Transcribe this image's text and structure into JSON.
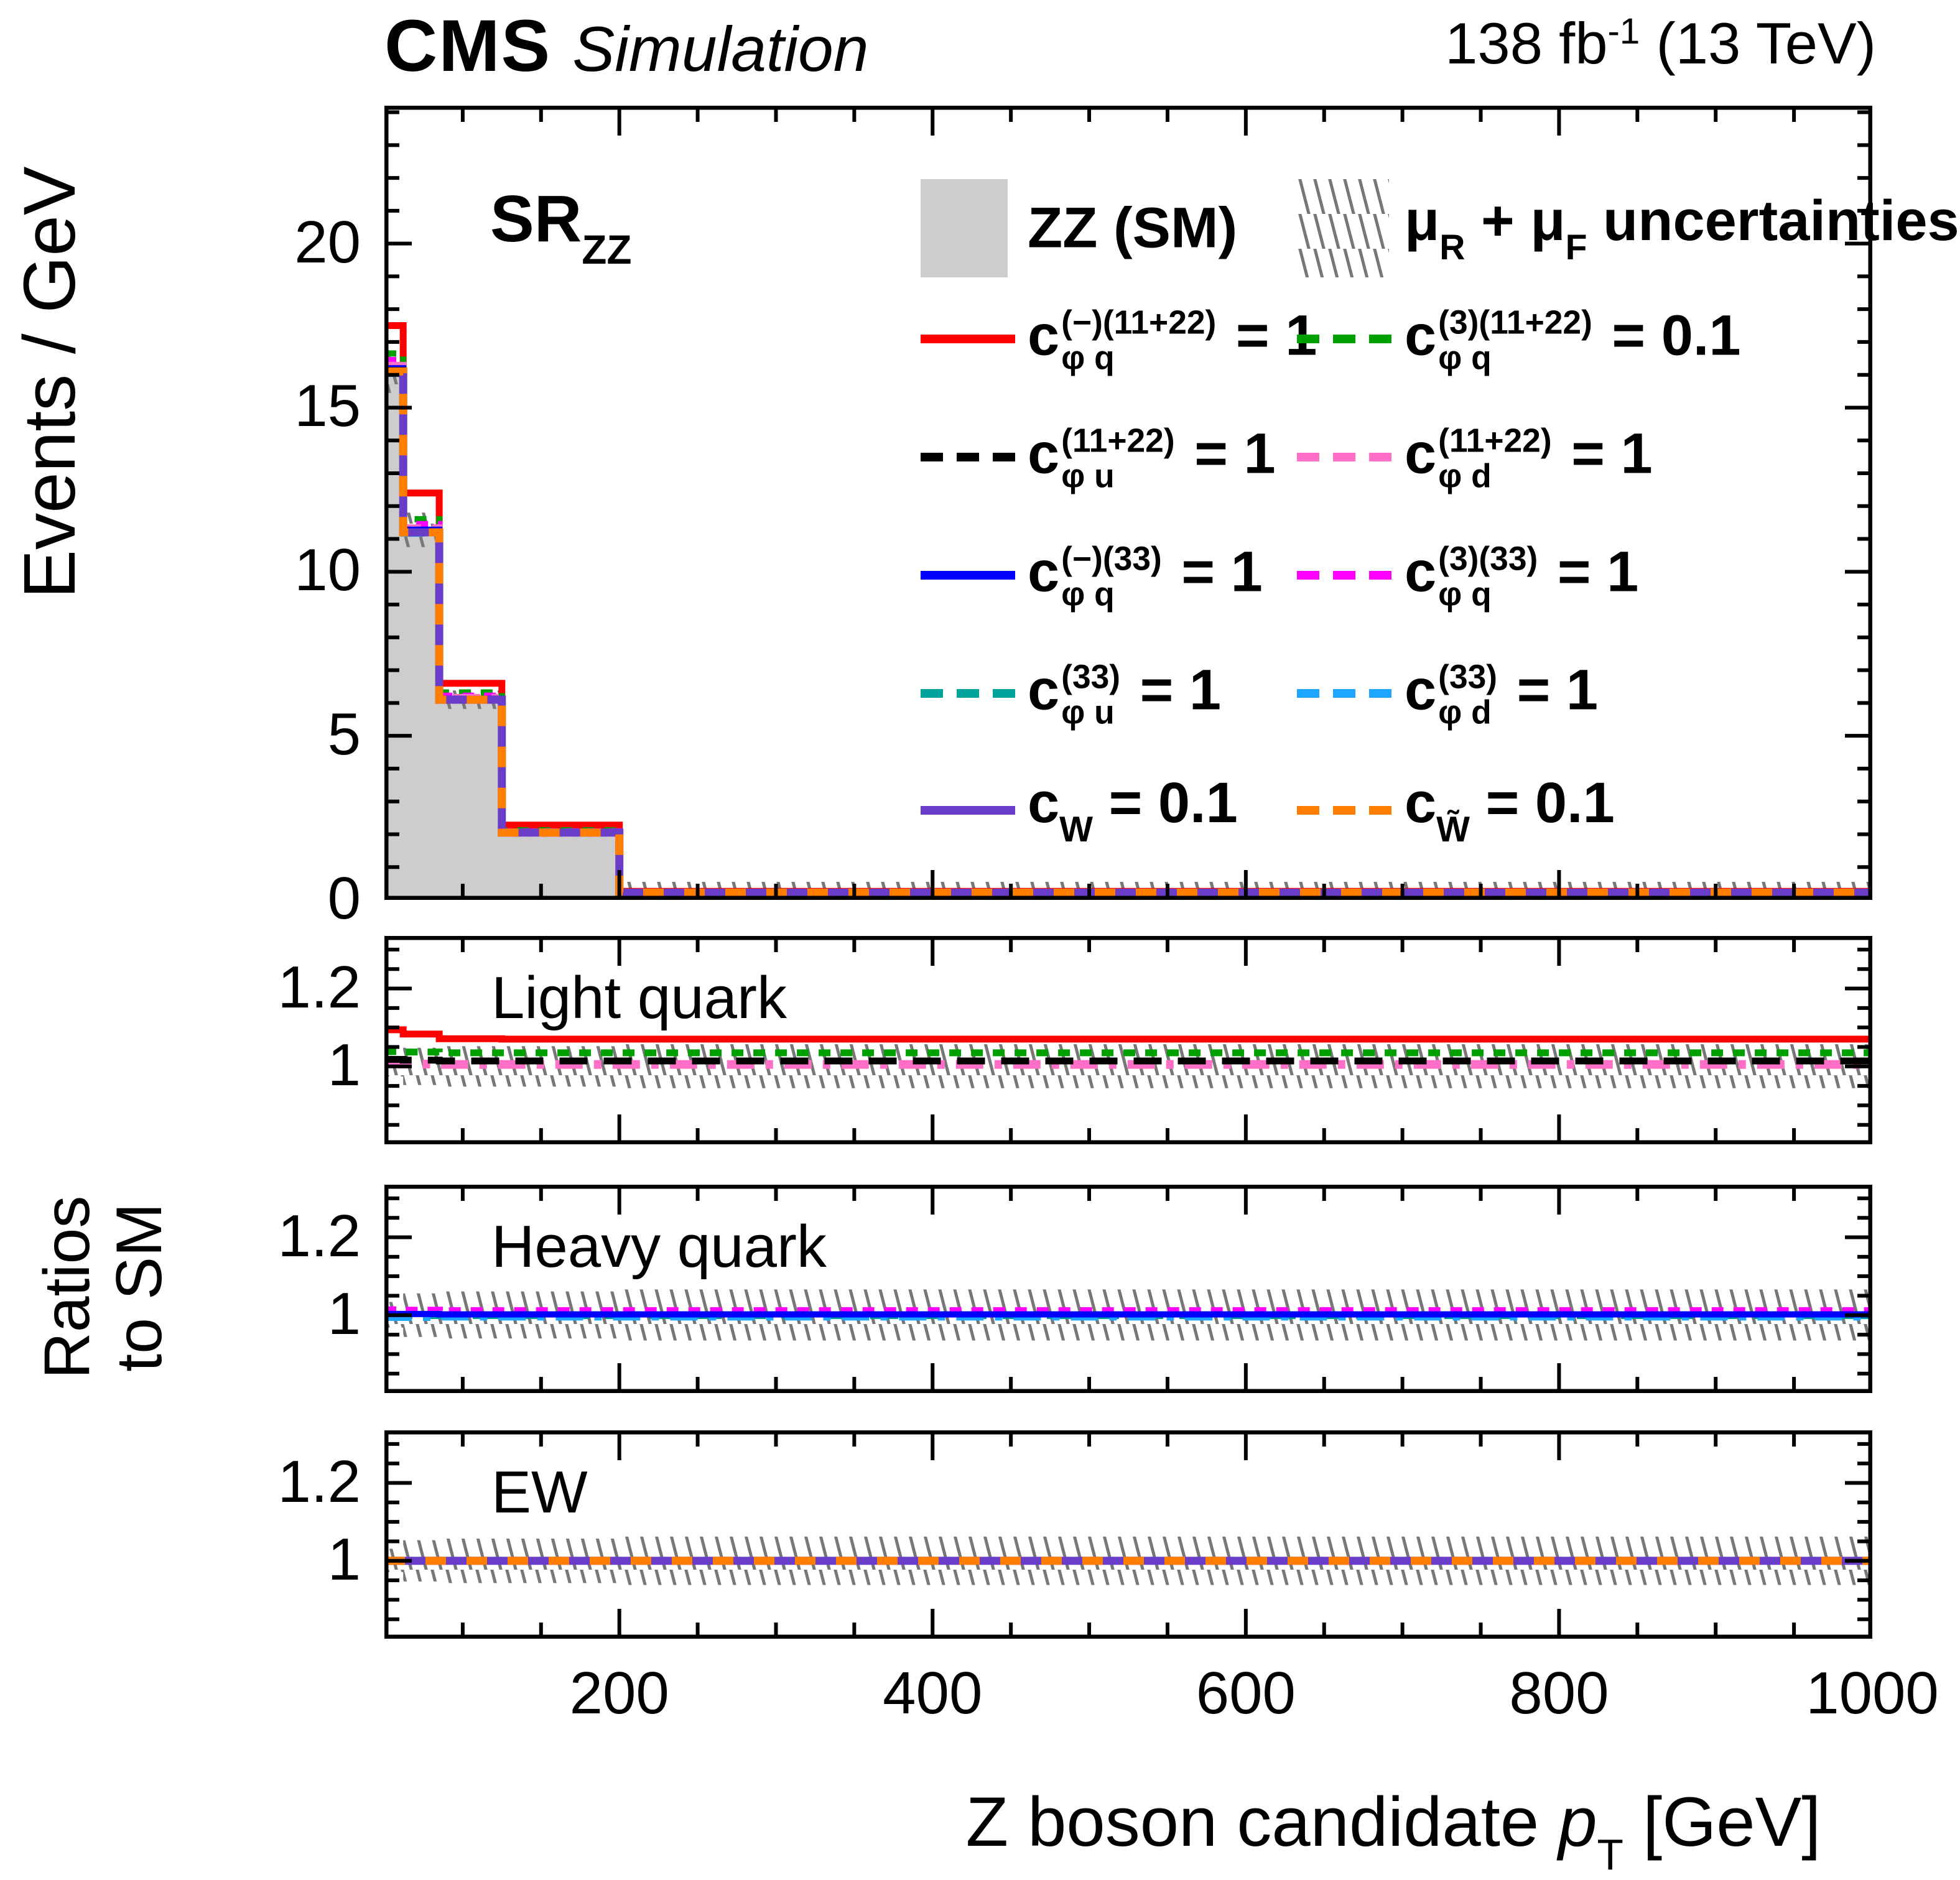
{
  "header": {
    "brand": "CMS",
    "mode": "Simulation",
    "lumi_segs": [
      {
        "t": "138 fb"
      },
      {
        "sup": "-1"
      },
      {
        "t": " (13 TeV)"
      }
    ]
  },
  "region_segs": [
    {
      "t": "SR"
    },
    {
      "sub": "ZZ"
    }
  ],
  "ylabel_main": "Events / GeV",
  "ylabel_ratio_lines": [
    "Ratios",
    "to SM"
  ],
  "xlabel_segs": [
    {
      "t": "Z boson candidate "
    },
    {
      "t": "p",
      "i": 1
    },
    {
      "sub": "T"
    },
    {
      "t": " [GeV]"
    }
  ],
  "legend": {
    "sm_segs": [
      {
        "t": "ZZ (SM)"
      }
    ],
    "sm_fill": "#cdcdcd",
    "unc_segs": [
      {
        "t": "μ"
      },
      {
        "sub": "R"
      },
      {
        "t": " + "
      },
      {
        "t": "μ"
      },
      {
        "sub": "F"
      },
      {
        "t": " uncertainties"
      }
    ],
    "rows": [
      [
        {
          "color": "#ff0000",
          "dash": "solid",
          "segs": [
            {
              "t": "c"
            },
            {
              "sup": "(−)(11+22)",
              "sub": "φ q"
            },
            {
              "t": " = 1"
            }
          ]
        },
        {
          "color": "#00a000",
          "dash": "shortdash",
          "segs": [
            {
              "t": "c"
            },
            {
              "sup": "(3)(11+22)",
              "sub": "φ q"
            },
            {
              "t": " = 0.1"
            }
          ]
        }
      ],
      [
        {
          "color": "#000000",
          "dash": "dash",
          "segs": [
            {
              "t": "c"
            },
            {
              "sup": "(11+22)",
              "sub": "φ u"
            },
            {
              "t": " = 1"
            }
          ]
        },
        {
          "color": "#ff6ec7",
          "dash": "dashdot",
          "segs": [
            {
              "t": "c"
            },
            {
              "sup": "(11+22)",
              "sub": "φ d"
            },
            {
              "t": " = 1"
            }
          ]
        }
      ],
      [
        {
          "color": "#0000ff",
          "dash": "solid",
          "segs": [
            {
              "t": "c"
            },
            {
              "sup": "(−)(33)",
              "sub": "φ q"
            },
            {
              "t": " = 1"
            }
          ]
        },
        {
          "color": "#ff00ff",
          "dash": "shortdash",
          "segs": [
            {
              "t": "c"
            },
            {
              "sup": "(3)(33)",
              "sub": "φ q"
            },
            {
              "t": " = 1"
            }
          ]
        }
      ],
      [
        {
          "color": "#00a39a",
          "dash": "dash",
          "segs": [
            {
              "t": "c"
            },
            {
              "sup": "(33)",
              "sub": "φ u"
            },
            {
              "t": " = 1"
            }
          ]
        },
        {
          "color": "#1da5ff",
          "dash": "dashdot",
          "segs": [
            {
              "t": "c"
            },
            {
              "sup": "(33)",
              "sub": "φ d"
            },
            {
              "t": " = 1"
            }
          ]
        }
      ],
      [
        {
          "color": "#6a3dc8",
          "dash": "solid",
          "segs": [
            {
              "t": "c"
            },
            {
              "sub": "W"
            },
            {
              "t": " = 0.1"
            }
          ]
        },
        {
          "color": "#ff7d00",
          "dash": "shortdash",
          "segs": [
            {
              "t": "c"
            },
            {
              "sub": "W̃"
            },
            {
              "t": " = 0.1"
            }
          ]
        }
      ]
    ]
  },
  "chart_data": {
    "type": "bar",
    "note": "step histograms (Events/GeV) with three ratio-to-SM panels",
    "x_range": [
      50,
      1000
    ],
    "bin_edges": [
      50,
      62,
      85,
      125,
      200,
      1000
    ],
    "x_major_ticks": [
      200,
      400,
      600,
      800,
      1000
    ],
    "x_minor_step": 50,
    "xlabel": "Z boson candidate pT [GeV]",
    "main": {
      "ylabel": "Events / GeV",
      "y_range": [
        0,
        24.2
      ],
      "y_major_ticks": [
        0,
        5,
        10,
        15,
        20
      ],
      "y_minor_step": 1,
      "sm": {
        "label": "ZZ (SM)",
        "fill": "#cdcdcd",
        "values": [
          16.1,
          11.2,
          6.1,
          2.05,
          0.22
        ]
      },
      "band": {
        "label": "μR + μF uncertainties",
        "lo": [
          15.45,
          10.75,
          5.82,
          1.93,
          0.0
        ],
        "hi": [
          16.75,
          11.8,
          6.38,
          2.18,
          0.55
        ]
      },
      "series": [
        {
          "id": "cphiq_m_1122",
          "label": "cφq(−)(11+22) = 1",
          "color": "#ff0000",
          "dash": "solid",
          "lw": 11,
          "values": [
            17.5,
            12.4,
            6.6,
            2.28,
            0.26
          ]
        },
        {
          "id": "cphiq_3_1122",
          "label": "cφq(3)(11+22) = 0.1",
          "color": "#00a000",
          "dash": "shortdash",
          "lw": 10,
          "values": [
            16.65,
            11.6,
            6.32,
            2.12,
            0.235
          ]
        },
        {
          "id": "cphiq_3_33",
          "label": "cφq(3)(33) = 1",
          "color": "#ff00ff",
          "dash": "shortdash",
          "lw": 10,
          "values": [
            16.45,
            11.45,
            6.22,
            2.09,
            0.23
          ]
        },
        {
          "id": "cphid_1122",
          "label": "cφd(11+22) = 1",
          "color": "#ff6ec7",
          "dash": "dashdot",
          "lw": 10,
          "values": [
            16.3,
            11.35,
            6.18,
            2.07,
            0.225
          ]
        },
        {
          "id": "cphiq_m_33",
          "label": "cφq(−)(33) = 1",
          "color": "#0000ff",
          "dash": "solid",
          "lw": 10,
          "values": [
            16.2,
            11.28,
            6.13,
            2.06,
            0.222
          ]
        },
        {
          "id": "cphiu_33",
          "label": "cφu(33) = 1",
          "color": "#00a39a",
          "dash": "dash",
          "lw": 9,
          "values": [
            16.08,
            11.18,
            6.09,
            2.045,
            0.22
          ]
        },
        {
          "id": "cphid_33",
          "label": "cφd(33) = 1",
          "color": "#1da5ff",
          "dash": "dashdot",
          "lw": 9,
          "values": [
            16.02,
            11.15,
            6.07,
            2.04,
            0.219
          ]
        },
        {
          "id": "cphiu_1122",
          "label": "cφu(11+22) = 1",
          "color": "#000000",
          "dash": "dash",
          "lw": 9,
          "values": [
            16.15,
            11.22,
            6.11,
            2.052,
            0.221
          ]
        },
        {
          "id": "cw",
          "label": "cW = 0.1",
          "color": "#6a3dc8",
          "dash": "solid",
          "lw": 13,
          "values": [
            16.1,
            11.2,
            6.1,
            2.05,
            0.22
          ]
        },
        {
          "id": "cwtilde",
          "label": "cW̃ = 0.1",
          "color": "#ff7d00",
          "dash": "orangedash",
          "lw": 13,
          "values": [
            16.1,
            11.2,
            6.1,
            2.05,
            0.22
          ]
        }
      ]
    },
    "ratio_common": {
      "y_range": [
        0.8,
        1.335
      ],
      "y_major_ticks": [
        1,
        1.2
      ],
      "y_minor_step": 0.05
    },
    "ratio_panels": [
      {
        "label": "Light quark",
        "band": {
          "lo": [
            0.974,
            0.952,
            0.948,
            0.948,
            0.944
          ],
          "hi": [
            1.027,
            1.048,
            1.052,
            1.052,
            1.057
          ]
        },
        "lines": [
          {
            "id": "cphiq_m_1122",
            "color": "#ff0000",
            "dash": "solid",
            "lw": 11,
            "values": [
              1.094,
              1.083,
              1.071,
              1.07,
              1.07
            ]
          },
          {
            "id": "cphiq_3_1122",
            "color": "#00a000",
            "dash": "shortdash",
            "lw": 11,
            "values": [
              1.038,
              1.037,
              1.035,
              1.035,
              1.035
            ]
          },
          {
            "id": "cphid_1122",
            "color": "#ff6ec7",
            "dash": "dashdot",
            "lw": 14,
            "values": [
              1.007,
              1.006,
              1.005,
              1.005,
              1.005
            ]
          },
          {
            "id": "cphiu_1122",
            "color": "#000000",
            "dash": "dash",
            "lw": 11,
            "values": [
              1.018,
              1.016,
              1.014,
              1.014,
              1.014
            ]
          }
        ]
      },
      {
        "label": "Heavy quark",
        "band": {
          "lo": [
            0.968,
            0.944,
            0.94,
            0.94,
            0.935
          ],
          "hi": [
            1.034,
            1.056,
            1.061,
            1.061,
            1.066
          ]
        },
        "lines": [
          {
            "id": "cphiq_3_33",
            "color": "#ff00ff",
            "dash": "shortdash",
            "lw": 12,
            "values": [
              1.013,
              1.012,
              1.011,
              1.011,
              1.011
            ]
          },
          {
            "id": "cphiu_33",
            "color": "#00a39a",
            "dash": "dash",
            "lw": 10,
            "values": [
              0.998,
              0.998,
              0.998,
              0.998,
              0.998
            ]
          },
          {
            "id": "cphid_33",
            "color": "#1da5ff",
            "dash": "dashdot",
            "lw": 11,
            "values": [
              0.994,
              0.994,
              0.995,
              0.995,
              0.995
            ]
          },
          {
            "id": "cphiq_m_33",
            "color": "#0000ff",
            "dash": "solid",
            "lw": 10,
            "values": [
              1.003,
              1.003,
              1.002,
              1.002,
              1.002
            ]
          }
        ]
      },
      {
        "label": "EW",
        "band": {
          "lo": [
            0.971,
            0.947,
            0.943,
            0.943,
            0.938
          ],
          "hi": [
            1.031,
            1.053,
            1.057,
            1.057,
            1.062
          ]
        },
        "lines": [
          {
            "id": "cw",
            "color": "#6a3dc8",
            "dash": "solid",
            "lw": 13,
            "values": [
              1.0,
              1.0,
              1.0,
              1.0,
              1.0
            ]
          },
          {
            "id": "cwtilde",
            "color": "#ff7d00",
            "dash": "orangedash",
            "lw": 13,
            "values": [
              1.0,
              1.0,
              1.0,
              1.0,
              1.0
            ]
          }
        ]
      }
    ]
  }
}
